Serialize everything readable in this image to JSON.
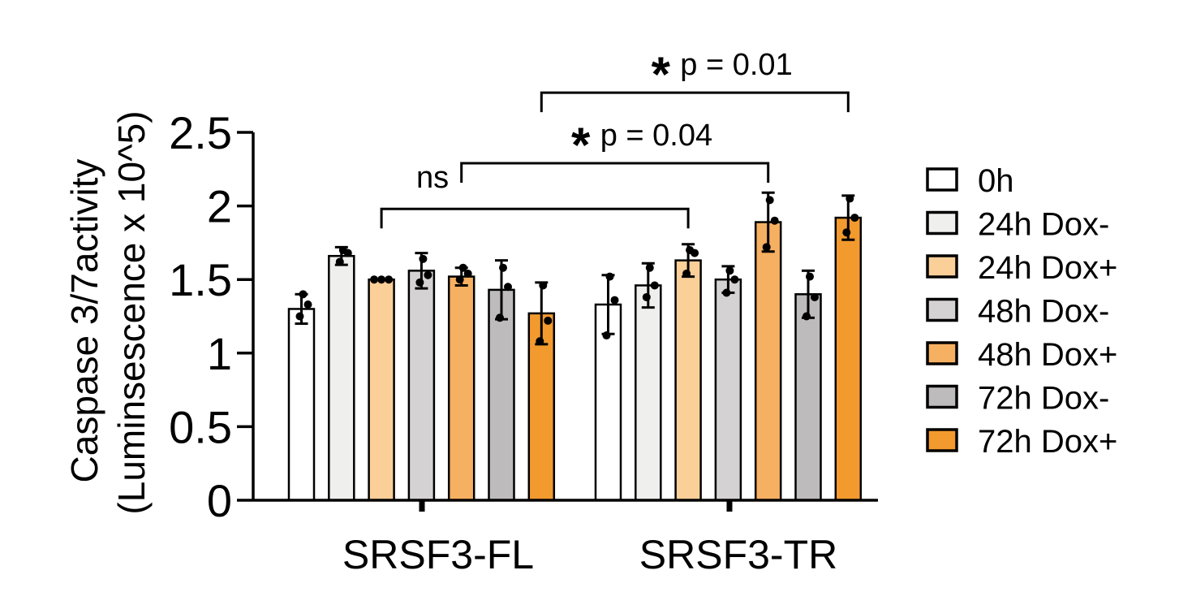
{
  "chart_data": {
    "type": "bar",
    "ylabel_line1": "Caspase 3/7activity",
    "ylabel_line2": "(Luminsescence x 10^5)",
    "ylim": [
      0,
      2.5
    ],
    "yticks": [
      {
        "value": 0,
        "label": "0"
      },
      {
        "value": 0.5,
        "label": "0.5"
      },
      {
        "value": 1,
        "label": "1"
      },
      {
        "value": 1.5,
        "label": "1.5"
      },
      {
        "value": 2,
        "label": "2"
      },
      {
        "value": 2.5,
        "label": "2.5"
      }
    ],
    "categories": [
      "SRSF3-FL",
      "SRSF3-TR"
    ],
    "series": [
      {
        "name": "0h",
        "color": "#ffffff",
        "values": [
          1.3,
          1.33
        ],
        "errors": [
          0.1,
          0.2
        ],
        "points": [
          [
            1.25,
            1.33,
            1.4
          ],
          [
            1.12,
            1.36,
            1.52
          ]
        ]
      },
      {
        "name": "24h Dox-",
        "color": "#efefee",
        "values": [
          1.66,
          1.46
        ],
        "errors": [
          0.06,
          0.15
        ],
        "points": [
          [
            1.62,
            1.68,
            1.7
          ],
          [
            1.38,
            1.46,
            1.58
          ]
        ]
      },
      {
        "name": "24h Dox+",
        "color": "#fbcf98",
        "values": [
          1.5,
          1.63
        ],
        "errors": [
          0.0,
          0.11
        ],
        "points": [
          [
            1.5,
            1.5,
            1.5
          ],
          [
            1.54,
            1.68,
            1.7
          ]
        ]
      },
      {
        "name": "48h Dox-",
        "color": "#d4d2d2",
        "values": [
          1.56,
          1.5
        ],
        "errors": [
          0.12,
          0.09
        ],
        "points": [
          [
            1.48,
            1.53,
            1.64
          ],
          [
            1.41,
            1.5,
            1.56
          ]
        ]
      },
      {
        "name": "48h Dox+",
        "color": "#f6b061",
        "values": [
          1.52,
          1.89
        ],
        "errors": [
          0.06,
          0.2
        ],
        "points": [
          [
            1.5,
            1.54,
            1.58
          ],
          [
            1.72,
            1.9,
            2.04
          ]
        ]
      },
      {
        "name": "72h Dox-",
        "color": "#bdbbbb",
        "values": [
          1.43,
          1.4
        ],
        "errors": [
          0.2,
          0.16
        ],
        "points": [
          [
            1.24,
            1.45,
            1.58
          ],
          [
            1.25,
            1.38,
            1.52
          ]
        ]
      },
      {
        "name": "72h Dox+",
        "color": "#f39a2e",
        "values": [
          1.27,
          1.92
        ],
        "errors": [
          0.21,
          0.15
        ],
        "points": [
          [
            1.08,
            1.22,
            1.46
          ],
          [
            1.82,
            1.92,
            2.05
          ]
        ]
      }
    ],
    "legend_position": "right",
    "annotations": [
      {
        "from": {
          "category": 0,
          "series": 2
        },
        "to": {
          "category": 1,
          "series": 2
        },
        "y": 1.98,
        "star": "",
        "text": "ns"
      },
      {
        "from": {
          "category": 0,
          "series": 4
        },
        "to": {
          "category": 1,
          "series": 4
        },
        "y": 2.29,
        "star": "*",
        "text": "p = 0.04"
      },
      {
        "from": {
          "category": 0,
          "series": 6
        },
        "to": {
          "category": 1,
          "series": 6
        },
        "y": 2.77,
        "star": "*",
        "text": "p = 0.01"
      }
    ]
  }
}
